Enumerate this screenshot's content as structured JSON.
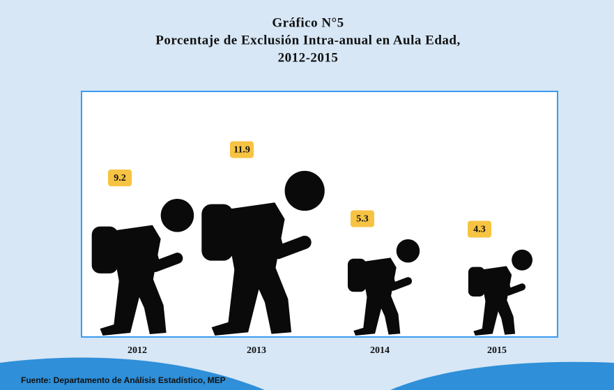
{
  "chart_data": {
    "type": "pictograph",
    "title": [
      "Gráfico N°5",
      "Porcentaje de Exclusión Intra-anual en Aula Edad,",
      "2012-2015"
    ],
    "categories": [
      "2012",
      "2013",
      "2014",
      "2015"
    ],
    "values": [
      9.2,
      11.9,
      5.3,
      4.3
    ],
    "color": "#0a0a0a",
    "label_color": "#f7c342",
    "source": "Fuente: Departamento de Análisis Estadístico, MEP"
  }
}
